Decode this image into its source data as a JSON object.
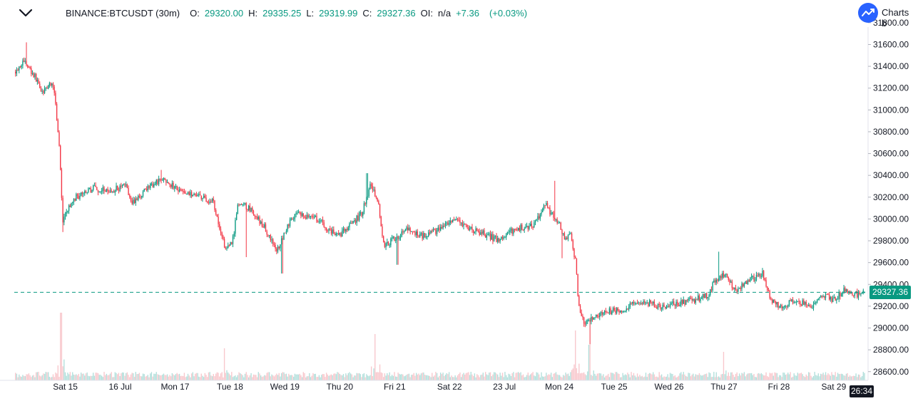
{
  "header": {
    "symbol": "BINANCE:BTCUSDT (30m)",
    "open_label": "O:",
    "open_value": "29320.00",
    "high_label": "H:",
    "high_value": "29335.25",
    "low_label": "L:",
    "low_value": "29319.99",
    "close_label": "C:",
    "close_value": "29327.36",
    "oi_label": "OI:",
    "oi_value": "n/a",
    "change_value": "+7.36",
    "change_pct": "(+0.03%)"
  },
  "branding": {
    "text": "Charts b",
    "icon": "trend-logo-icon"
  },
  "collapse_icon": "chevron-down-icon",
  "current_price_label": "29327.36",
  "countdown_label": "26:34",
  "colors": {
    "up": "#089981",
    "down": "#f23645",
    "up_volume": "#b2dfdb",
    "down_volume": "#f8c7cc",
    "price_line": "#089981",
    "axis_text": "#131722",
    "brand": "#2962ff"
  },
  "chart_data": {
    "type": "candlestick",
    "symbol": "BINANCE:BTCUSDT",
    "interval": "30m",
    "last_ohlc": {
      "open": 29320.0,
      "high": 29335.25,
      "low": 29319.99,
      "close": 29327.36
    },
    "change": 7.36,
    "change_percent": 0.03,
    "current_price": 29327.36,
    "ylim": [
      28520,
      31760
    ],
    "y_ticks": [
      31800,
      31600,
      31400,
      31200,
      31000,
      30800,
      30600,
      30400,
      30200,
      30000,
      29800,
      29600,
      29400,
      29200,
      29000,
      28800,
      28600
    ],
    "y_tick_labels": [
      "31800.00",
      "31600.00",
      "31400.00",
      "31200.00",
      "31000.00",
      "30800.00",
      "30600.00",
      "30400.00",
      "30200.00",
      "30000.00",
      "29800.00",
      "29600.00",
      "29400.00",
      "29200.00",
      "29000.00",
      "28800.00",
      "28600.00"
    ],
    "x_ticks": [
      {
        "label": "Sat 15",
        "day": 1
      },
      {
        "label": "16 Jul",
        "day": 2
      },
      {
        "label": "Mon 17",
        "day": 3
      },
      {
        "label": "Tue 18",
        "day": 4
      },
      {
        "label": "Wed 19",
        "day": 5
      },
      {
        "label": "Thu 20",
        "day": 6
      },
      {
        "label": "Fri 21",
        "day": 7
      },
      {
        "label": "Sat 22",
        "day": 8
      },
      {
        "label": "23 Jul",
        "day": 9
      },
      {
        "label": "Mon 24",
        "day": 10
      },
      {
        "label": "Tue 25",
        "day": 11
      },
      {
        "label": "Wed 26",
        "day": 12
      },
      {
        "label": "Thu 27",
        "day": 13
      },
      {
        "label": "Fri 28",
        "day": 14
      },
      {
        "label": "Sat 29",
        "day": 15
      }
    ],
    "x_range_days": [
      0.07,
      15.56
    ],
    "price_path": [
      [
        0.07,
        31350
      ],
      [
        0.25,
        31450
      ],
      [
        0.45,
        31300
      ],
      [
        0.6,
        31150
      ],
      [
        0.72,
        31250
      ],
      [
        0.8,
        31180
      ],
      [
        0.9,
        30600
      ],
      [
        0.95,
        29950
      ],
      [
        1.0,
        30050
      ],
      [
        1.2,
        30200
      ],
      [
        1.5,
        30280
      ],
      [
        1.8,
        30260
      ],
      [
        2.1,
        30300
      ],
      [
        2.2,
        30150
      ],
      [
        2.5,
        30280
      ],
      [
        2.8,
        30380
      ],
      [
        2.95,
        30300
      ],
      [
        3.2,
        30230
      ],
      [
        3.5,
        30200
      ],
      [
        3.7,
        30150
      ],
      [
        3.9,
        29750
      ],
      [
        4.05,
        29800
      ],
      [
        4.15,
        30150
      ],
      [
        4.35,
        30100
      ],
      [
        4.6,
        29950
      ],
      [
        4.85,
        29700
      ],
      [
        5.05,
        29950
      ],
      [
        5.25,
        30050
      ],
      [
        5.6,
        30000
      ],
      [
        5.8,
        29900
      ],
      [
        6.0,
        29850
      ],
      [
        6.2,
        29950
      ],
      [
        6.4,
        30050
      ],
      [
        6.55,
        30300
      ],
      [
        6.7,
        30180
      ],
      [
        6.8,
        29750
      ],
      [
        6.95,
        29800
      ],
      [
        7.2,
        29900
      ],
      [
        7.5,
        29850
      ],
      [
        7.8,
        29900
      ],
      [
        8.1,
        29980
      ],
      [
        8.4,
        29900
      ],
      [
        8.7,
        29850
      ],
      [
        8.9,
        29800
      ],
      [
        9.1,
        29880
      ],
      [
        9.3,
        29920
      ],
      [
        9.55,
        29950
      ],
      [
        9.75,
        30150
      ],
      [
        9.85,
        30050
      ],
      [
        10.0,
        29950
      ],
      [
        10.1,
        29800
      ],
      [
        10.2,
        29850
      ],
      [
        10.3,
        29600
      ],
      [
        10.35,
        29200
      ],
      [
        10.45,
        29050
      ],
      [
        10.6,
        29100
      ],
      [
        10.9,
        29150
      ],
      [
        11.2,
        29180
      ],
      [
        11.5,
        29250
      ],
      [
        11.8,
        29200
      ],
      [
        12.1,
        29220
      ],
      [
        12.4,
        29250
      ],
      [
        12.7,
        29300
      ],
      [
        12.85,
        29450
      ],
      [
        13.0,
        29500
      ],
      [
        13.2,
        29350
      ],
      [
        13.5,
        29450
      ],
      [
        13.7,
        29500
      ],
      [
        13.85,
        29250
      ],
      [
        14.0,
        29200
      ],
      [
        14.3,
        29250
      ],
      [
        14.6,
        29200
      ],
      [
        14.85,
        29300
      ],
      [
        15.0,
        29250
      ],
      [
        15.2,
        29350
      ],
      [
        15.45,
        29300
      ],
      [
        15.56,
        29327
      ]
    ],
    "notable_wicks": [
      {
        "day": 0.3,
        "high": 31620
      },
      {
        "day": 0.95,
        "low": 29880
      },
      {
        "day": 2.75,
        "high": 30450
      },
      {
        "day": 4.3,
        "low": 29650
      },
      {
        "day": 4.95,
        "low": 29500
      },
      {
        "day": 6.5,
        "high": 30420
      },
      {
        "day": 7.05,
        "low": 29580
      },
      {
        "day": 9.92,
        "high": 30350
      },
      {
        "day": 10.05,
        "low": 29640
      },
      {
        "day": 10.56,
        "low": 28850
      },
      {
        "day": 12.9,
        "high": 29700
      }
    ],
    "volume_spikes": [
      {
        "day": 0.92,
        "relative": 0.95
      },
      {
        "day": 3.9,
        "relative": 0.45
      },
      {
        "day": 6.65,
        "relative": 0.65
      },
      {
        "day": 10.3,
        "relative": 0.7
      },
      {
        "day": 10.55,
        "relative": 0.5
      },
      {
        "day": 13.0,
        "relative": 0.4
      }
    ]
  }
}
